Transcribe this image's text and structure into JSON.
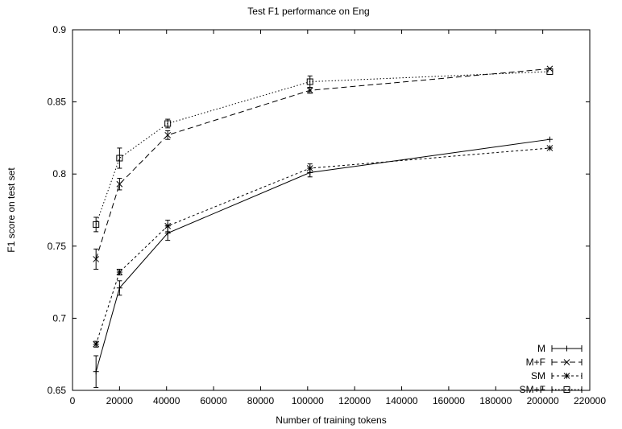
{
  "chart_data": {
    "type": "line",
    "title": "Test F1 performance on Eng",
    "xlabel": "Number of training tokens",
    "ylabel": "F1 score on test set",
    "xlim": [
      0,
      220000
    ],
    "ylim": [
      0.65,
      0.9
    ],
    "xticks": [
      0,
      20000,
      40000,
      60000,
      80000,
      100000,
      120000,
      140000,
      160000,
      180000,
      200000,
      220000
    ],
    "xtick_labels": [
      "0",
      "20000",
      "40000",
      "60000",
      "80000",
      "100000",
      "120000",
      "140000",
      "160000",
      "180000",
      "200000",
      "220000"
    ],
    "yticks": [
      0.65,
      0.7,
      0.75,
      0.8,
      0.85,
      0.9
    ],
    "ytick_labels": [
      "0.65",
      "0.7",
      "0.75",
      "0.8",
      "0.85",
      "0.9"
    ],
    "grid": false,
    "legend_position": "bottom-right",
    "x": [
      10000,
      20000,
      40500,
      101000,
      203000
    ],
    "series": [
      {
        "name": "M",
        "marker": "plus",
        "dash": "solid",
        "values": [
          0.663,
          0.721,
          0.759,
          0.801,
          0.824
        ],
        "errors": [
          0.011,
          0.005,
          0.005,
          0.003,
          0.0
        ]
      },
      {
        "name": "M+F",
        "marker": "cross",
        "dash": "dashed",
        "values": [
          0.741,
          0.793,
          0.827,
          0.858,
          0.873
        ],
        "errors": [
          0.007,
          0.004,
          0.003,
          0.002,
          0.0
        ]
      },
      {
        "name": "SM",
        "marker": "star",
        "dash": "short-dashed",
        "values": [
          0.682,
          0.732,
          0.764,
          0.804,
          0.818
        ],
        "errors": [
          0.002,
          0.002,
          0.004,
          0.003,
          0.0
        ]
      },
      {
        "name": "SM+F",
        "marker": "box",
        "dash": "dotted",
        "values": [
          0.765,
          0.811,
          0.835,
          0.864,
          0.871
        ],
        "errors": [
          0.005,
          0.007,
          0.003,
          0.004,
          0.0
        ]
      }
    ]
  }
}
